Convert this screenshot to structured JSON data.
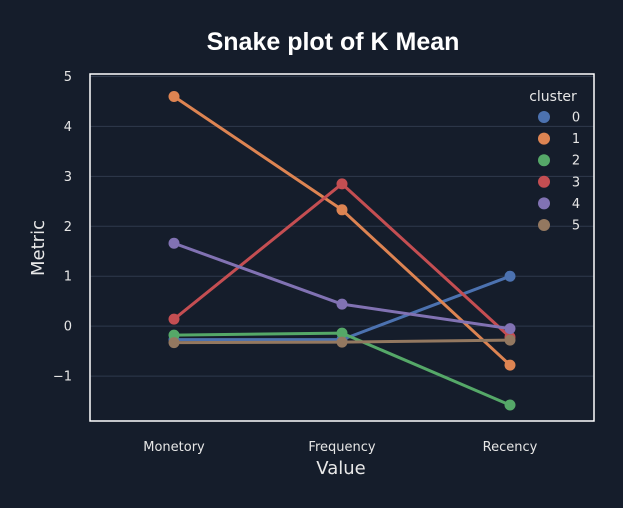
{
  "chart_data": {
    "type": "line",
    "title": "Snake plot of K Mean",
    "xlabel": "Value",
    "ylabel": "Metric",
    "categories": [
      "Monetory",
      "Frequency",
      "Recency"
    ],
    "ylim": [
      -1.9,
      5.05
    ],
    "yticks": [
      -1,
      0,
      1,
      2,
      3,
      4,
      5
    ],
    "grid": true,
    "legend": {
      "title": "cluster",
      "placement": "top-right"
    },
    "series": [
      {
        "name": "0",
        "color": "#4c72b0",
        "values": [
          -0.27,
          -0.27,
          1.0
        ]
      },
      {
        "name": "1",
        "color": "#dd8452",
        "values": [
          4.6,
          2.33,
          -0.78
        ]
      },
      {
        "name": "2",
        "color": "#55a868",
        "values": [
          -0.18,
          -0.14,
          -1.58
        ]
      },
      {
        "name": "3",
        "color": "#c44e52",
        "values": [
          0.14,
          2.85,
          -0.22
        ]
      },
      {
        "name": "4",
        "color": "#8172b3",
        "values": [
          1.66,
          0.44,
          -0.05
        ]
      },
      {
        "name": "5",
        "color": "#937860",
        "values": [
          -0.33,
          -0.32,
          -0.28
        ]
      }
    ]
  }
}
